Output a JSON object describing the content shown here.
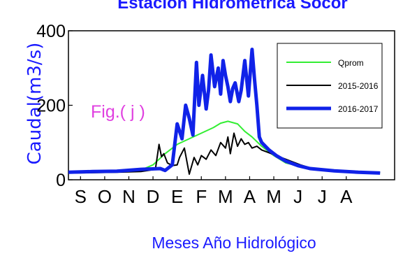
{
  "colors": {
    "title": "#1a1aff",
    "axis_label": "#1a1aff",
    "fig_label": "#e040e0",
    "qprom": "#33ee33",
    "y2015": "#000000",
    "y2016": "#1022e8"
  },
  "chart_data": {
    "type": "line",
    "title": "Estación Hidrométrica Socor",
    "xlabel": "Meses Año Hidrológico",
    "ylabel": "Caudal(m3/s)",
    "annotation": "Fig.( j )",
    "ylim": [
      0,
      400
    ],
    "xlim": [
      0,
      13.5
    ],
    "yticks": [
      "0",
      "200",
      "400"
    ],
    "month_labels": [
      "S",
      "O",
      "N",
      "D",
      "E",
      "F",
      "M",
      "A",
      "M",
      "J",
      "J",
      "A"
    ],
    "grid": false,
    "legend_position": "top-right",
    "series": [
      {
        "name": "Qprom",
        "color": "#33ee33",
        "width": 2,
        "x": [
          0,
          1,
          2,
          3,
          3.5,
          4,
          4.5,
          5,
          5.5,
          6,
          6.3,
          6.6,
          7,
          7.3,
          7.6,
          8,
          8.5,
          9,
          10,
          11,
          12,
          12.9
        ],
        "y": [
          20,
          20,
          22,
          26,
          40,
          70,
          95,
          110,
          125,
          140,
          152,
          157,
          150,
          130,
          115,
          90,
          65,
          45,
          30,
          24,
          20,
          18
        ]
      },
      {
        "name": "2015-2016",
        "color": "#000000",
        "width": 2,
        "x": [
          0,
          1,
          2,
          3,
          3.6,
          3.75,
          3.85,
          3.95,
          4.1,
          4.3,
          4.5,
          4.6,
          4.8,
          5,
          5.2,
          5.35,
          5.5,
          5.7,
          5.9,
          6.1,
          6.3,
          6.5,
          6.6,
          6.7,
          6.85,
          7,
          7.15,
          7.3,
          7.45,
          7.6,
          7.8,
          8,
          8.4,
          8.8,
          9.2,
          9.6,
          10,
          11,
          12,
          12.9
        ],
        "y": [
          18,
          19,
          20,
          22,
          28,
          95,
          62,
          70,
          45,
          38,
          40,
          60,
          85,
          15,
          60,
          40,
          65,
          55,
          80,
          65,
          100,
          85,
          115,
          70,
          125,
          90,
          110,
          95,
          100,
          85,
          90,
          80,
          70,
          60,
          50,
          40,
          32,
          26,
          22,
          20
        ]
      },
      {
        "name": "2016-2017",
        "color": "#1022e8",
        "width": 5,
        "x": [
          0,
          1,
          2,
          3,
          3.8,
          4,
          4.3,
          4.5,
          4.7,
          4.85,
          5,
          5.15,
          5.3,
          5.4,
          5.55,
          5.7,
          5.8,
          5.9,
          6.05,
          6.2,
          6.3,
          6.4,
          6.5,
          6.6,
          6.7,
          6.8,
          6.9,
          7.05,
          7.15,
          7.3,
          7.45,
          7.6,
          7.7,
          7.8,
          7.9,
          8,
          8.3,
          8.6,
          9,
          9.5,
          10,
          11,
          12,
          12.9
        ],
        "y": [
          20,
          22,
          23,
          28,
          30,
          25,
          40,
          150,
          110,
          200,
          165,
          120,
          315,
          200,
          280,
          190,
          240,
          335,
          250,
          300,
          230,
          320,
          280,
          250,
          210,
          245,
          260,
          210,
          240,
          320,
          225,
          350,
          270,
          200,
          115,
          100,
          80,
          65,
          50,
          38,
          30,
          24,
          20,
          18
        ]
      }
    ]
  }
}
